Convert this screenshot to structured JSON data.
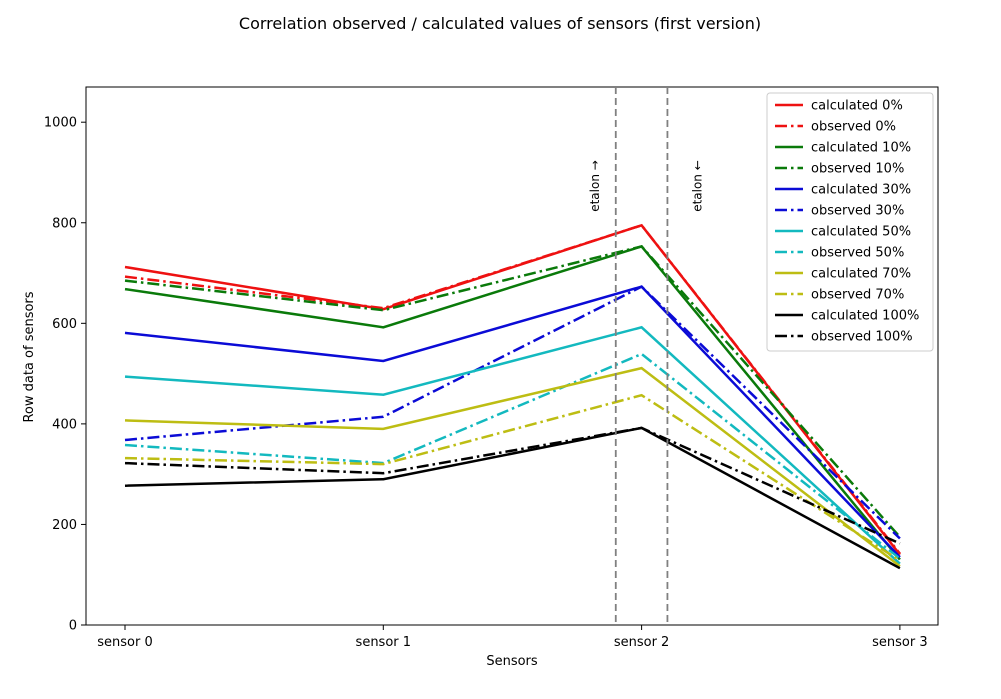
{
  "chart_data": {
    "type": "line",
    "title": "Correlation observed / calculated values of sensors (first version)",
    "xlabel": "Sensors",
    "ylabel": "Row data of sensors",
    "categories": [
      "sensor 0",
      "sensor 1",
      "sensor 2",
      "sensor 3"
    ],
    "ylim": [
      0,
      1070
    ],
    "yticks": [
      0,
      200,
      400,
      600,
      800,
      1000
    ],
    "grid": false,
    "legend_position": "top-right",
    "series": [
      {
        "name": "calculated 0%",
        "color": "#ee1111",
        "style": "solid",
        "values": [
          712,
          628,
          795,
          140
        ]
      },
      {
        "name": "observed 0%",
        "color": "#ee1111",
        "style": "dashdot",
        "values": [
          693,
          630,
          795,
          142
        ]
      },
      {
        "name": "calculated 10%",
        "color": "#0a7a0a",
        "style": "solid",
        "values": [
          668,
          592,
          753,
          130
        ]
      },
      {
        "name": "observed 10%",
        "color": "#0a7a0a",
        "style": "dashdot",
        "values": [
          685,
          626,
          753,
          175
        ]
      },
      {
        "name": "calculated 30%",
        "color": "#0b0bd6",
        "style": "solid",
        "values": [
          581,
          525,
          673,
          135
        ]
      },
      {
        "name": "observed 30%",
        "color": "#0b0bd6",
        "style": "dashdot",
        "values": [
          368,
          414,
          673,
          172
        ]
      },
      {
        "name": "calculated 50%",
        "color": "#13b9bf",
        "style": "solid",
        "values": [
          494,
          458,
          592,
          122
        ]
      },
      {
        "name": "observed 50%",
        "color": "#13b9bf",
        "style": "dashdot",
        "values": [
          358,
          322,
          539,
          132
        ]
      },
      {
        "name": "calculated 70%",
        "color": "#bdbd13",
        "style": "solid",
        "values": [
          407,
          390,
          511,
          117
        ]
      },
      {
        "name": "observed 70%",
        "color": "#bdbd13",
        "style": "dashdot",
        "values": [
          332,
          320,
          457,
          128
        ]
      },
      {
        "name": "calculated 100%",
        "color": "#000000",
        "style": "solid",
        "values": [
          277,
          290,
          392,
          113
        ]
      },
      {
        "name": "observed 100%",
        "color": "#000000",
        "style": "dashdot",
        "values": [
          322,
          302,
          392,
          162
        ]
      }
    ],
    "vlines": [
      {
        "x": 1.9,
        "label": "etalon →",
        "color": "#808080",
        "style": "dashed"
      },
      {
        "x": 2.1,
        "label": "etalon ←",
        "color": "#808080",
        "style": "dashed"
      }
    ]
  }
}
